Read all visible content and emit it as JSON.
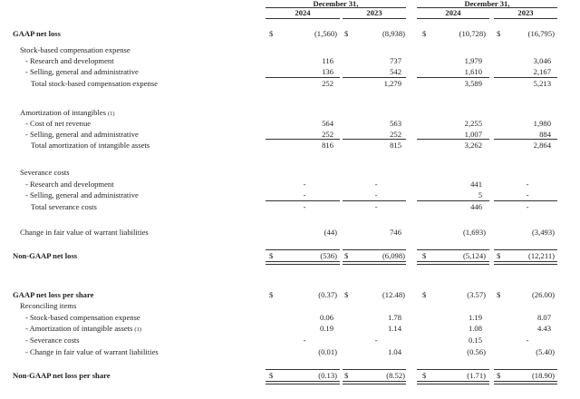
{
  "header": {
    "period_groups": [
      "December 31,",
      "December 31,"
    ],
    "columns": [
      "2024",
      "2023",
      "2024",
      "2023"
    ]
  },
  "currency_symbol": "$",
  "rows": [
    {
      "label": "GAAP net loss",
      "kind": "bold",
      "dollar": true,
      "values": [
        "(1,560)",
        "(8,938)",
        "(10,728)",
        "(16,795)"
      ]
    },
    {
      "label": "Stock-based compensation expense",
      "kind": "section",
      "values": [
        "",
        "",
        "",
        ""
      ]
    },
    {
      "label": "- Research and development",
      "kind": "item",
      "values": [
        "116",
        "737",
        "1,979",
        "3,046"
      ]
    },
    {
      "label": "- Selling, general and administrative",
      "kind": "item",
      "values": [
        "136",
        "542",
        "1,610",
        "2,167"
      ]
    },
    {
      "label": "Total stock-based compensation expense",
      "kind": "total",
      "values": [
        "252",
        "1,279",
        "3,589",
        "5,213"
      ]
    },
    {
      "label": "Amortization of intangibles",
      "footnote": "(1)",
      "kind": "section",
      "values": [
        "",
        "",
        "",
        ""
      ]
    },
    {
      "label": "- Cost of net revenue",
      "kind": "item",
      "values": [
        "564",
        "563",
        "2,255",
        "1,980"
      ]
    },
    {
      "label": "- Selling, general and administrative",
      "kind": "item",
      "values": [
        "252",
        "252",
        "1,007",
        "884"
      ]
    },
    {
      "label": "Total amortization of intangible assets",
      "kind": "total",
      "values": [
        "816",
        "815",
        "3,262",
        "2,864"
      ]
    },
    {
      "label": "Severance costs",
      "kind": "section",
      "values": [
        "",
        "",
        "",
        ""
      ]
    },
    {
      "label": "- Research and development",
      "kind": "item",
      "values": [
        "-",
        "-",
        "441",
        "-"
      ]
    },
    {
      "label": "- Selling, general and administrative",
      "kind": "item",
      "values": [
        "-",
        "-",
        "5",
        "-"
      ]
    },
    {
      "label": "Total severance costs",
      "kind": "total",
      "values": [
        "-",
        "-",
        "446",
        "-"
      ]
    },
    {
      "label": "Change in fair value of warrant liabilities",
      "kind": "section",
      "values": [
        "(44)",
        "746",
        "(1,693)",
        "(3,493)"
      ]
    },
    {
      "label": "Non-GAAP net loss",
      "kind": "grand",
      "dollar": true,
      "values": [
        "(536)",
        "(6,098)",
        "(5,124)",
        "(12,211)"
      ]
    },
    {
      "label": "GAAP net loss per share",
      "kind": "bold",
      "dollar": true,
      "values": [
        "(0.37)",
        "(12.48)",
        "(3.57)",
        "(26.00)"
      ]
    },
    {
      "label": "Reconciling items",
      "kind": "section",
      "values": [
        "",
        "",
        "",
        ""
      ]
    },
    {
      "label": "- Stock-based compensation expense",
      "kind": "item",
      "values": [
        "0.06",
        "1.78",
        "1.19",
        "8.07"
      ]
    },
    {
      "label": "- Amortization of intangible assets",
      "footnote": "(1)",
      "kind": "item",
      "values": [
        "0.19",
        "1.14",
        "1.08",
        "4.43"
      ]
    },
    {
      "label": "- Severance costs",
      "kind": "item",
      "values": [
        "-",
        "-",
        "0.15",
        "-"
      ]
    },
    {
      "label": "- Change in fair value of warrant liabilities",
      "kind": "item",
      "values": [
        "(0.01)",
        "1.04",
        "(0.56)",
        "(5.40)"
      ]
    },
    {
      "label": "Non-GAAP net loss per share",
      "kind": "grand",
      "dollar": true,
      "values": [
        "(0.13)",
        "(8.52)",
        "(1.71)",
        "(18.90)"
      ]
    }
  ]
}
